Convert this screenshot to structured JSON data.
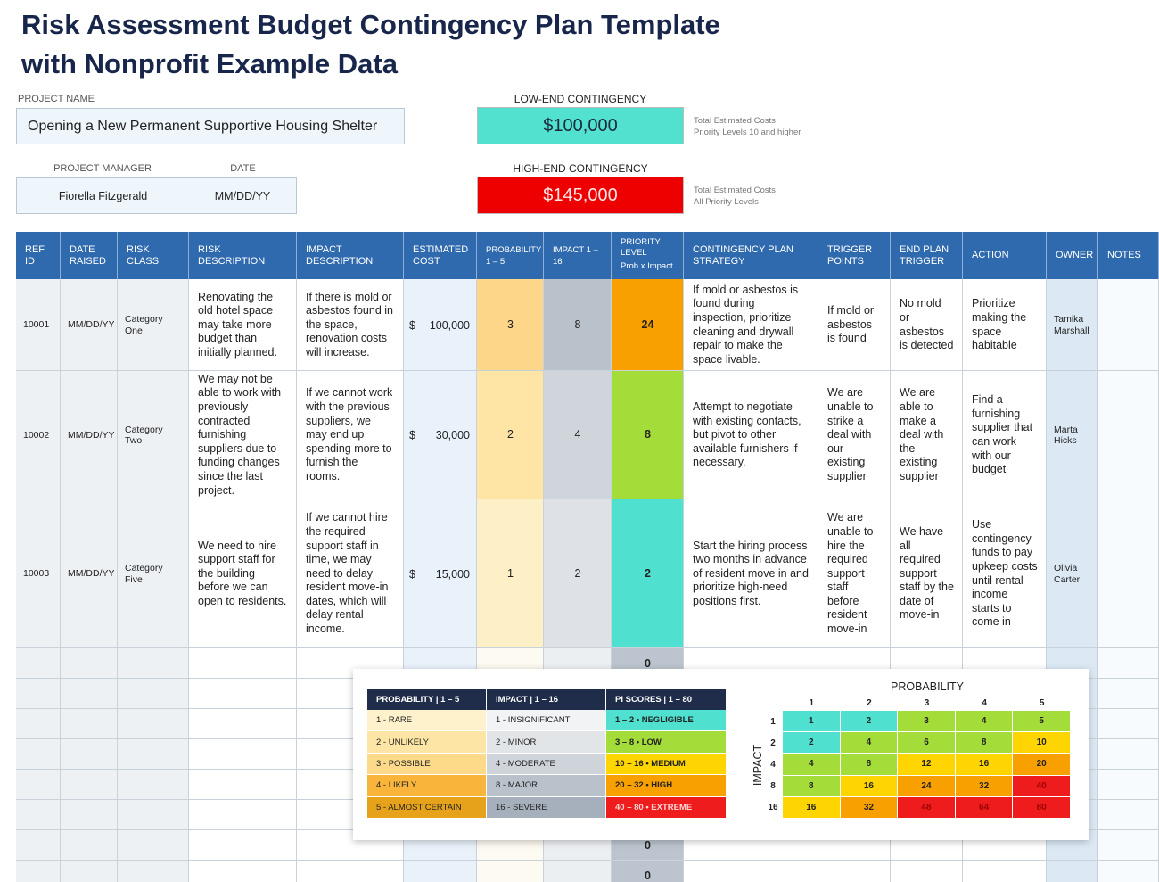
{
  "header": {
    "title": [
      "Risk Assessment Budget Contingency Plan Template",
      "with Nonprofit Example Data"
    ]
  },
  "project": {
    "name_label": "PROJECT NAME",
    "name": "Opening a New Permanent Supportive Housing Shelter",
    "manager_label": "PROJECT MANAGER",
    "manager": "Fiorella Fitzgerald",
    "date_label": "DATE",
    "date": "MM/DD/YY"
  },
  "contingency": {
    "low": {
      "label": "LOW-END CONTINGENCY",
      "amount": "$100,000",
      "notes": [
        "Total Estimated Costs",
        "Priority Levels 10 and higher"
      ],
      "color": "#52e0cf",
      "text_color": "#1a2a3a"
    },
    "high": {
      "label": "HIGH-END CONTINGENCY",
      "amount": "$145,000",
      "notes": [
        "Total Estimated Costs",
        "All Priority Levels"
      ],
      "color": "#ee0000",
      "text_color": "#ffe6e6"
    }
  },
  "table": {
    "columns": [
      "REF ID",
      "DATE RAISED",
      "RISK CLASS",
      "RISK DESCRIPTION",
      "IMPACT DESCRIPTION",
      "ESTIMATED COST",
      "PROBABILITY 1 – 5",
      "IMPACT 1 – 16",
      "PRIORITY LEVEL",
      "CONTINGENCY PLAN STRATEGY",
      "TRIGGER POINTS",
      "END PLAN TRIGGER",
      "ACTION",
      "OWNER",
      "NOTES"
    ],
    "priority_subtitle": "Prob x Impact",
    "rows": [
      {
        "ref": 10001,
        "date_raised": "MM/DD/YY",
        "risk_class": "Category One",
        "risk_description": "Renovating the old hotel space may take more budget than initially planned.",
        "impact_description": "If there is mold or asbestos found in the space, renovation costs will increase.",
        "currency": "$",
        "cost": "100,000",
        "probability": 3,
        "probability_color": "#fdd68a",
        "impact": 8,
        "impact_color": "#b9c1cb",
        "priority": 24,
        "priority_color": "#f7a000",
        "strategy": "If mold or asbestos is found during inspection, prioritize cleaning and drywall repair to make the space livable.",
        "trigger": "If mold or asbestos is found",
        "end_trigger": "No mold or asbestos is detected",
        "action": "Prioritize making the space habitable",
        "owner": "Tamika Marshall"
      },
      {
        "ref": 10002,
        "date_raised": "MM/DD/YY",
        "risk_class": "Category Two",
        "risk_description": "We may not be able to work with previously contracted furnishing suppliers due to funding changes since the last project.",
        "impact_description": "If we cannot work with the previous suppliers, we may end up spending more to furnish the rooms.",
        "currency": "$",
        "cost": "30,000",
        "probability": 2,
        "probability_color": "#fee5a6",
        "impact": 4,
        "impact_color": "#d0d5dc",
        "priority": 8,
        "priority_color": "#a4dc3a",
        "strategy": "Attempt to negotiate with existing contacts, but pivot to other available furnishers if necessary.",
        "trigger": "We are unable to strike a deal with our existing supplier",
        "end_trigger": "We are able to make a deal with the existing supplier",
        "action": "Find a furnishing supplier that can work with our budget",
        "owner": "Marta Hicks"
      },
      {
        "ref": 10003,
        "date_raised": "MM/DD/YY",
        "risk_class": "Category Five",
        "risk_description": "We need to hire support staff for the building before we can open to residents.",
        "impact_description": "If we cannot hire the required support staff in time, we may need to delay resident move-in dates, which will delay rental income.",
        "currency": "$",
        "cost": "15,000",
        "probability": 1,
        "probability_color": "#fef0c6",
        "impact": 2,
        "impact_color": "#dee2e7",
        "priority": 2,
        "priority_color": "#4fe0d0",
        "strategy": "Start the hiring process two months in advance of resident move in and prioritize high-need positions first.",
        "trigger": "We are unable to hire the required support staff before resident move-in",
        "end_trigger": "We have all required support staff by the date of move-in",
        "action": "Use contingency funds to pay upkeep costs until rental income starts to come in",
        "owner": "Olivia Carter"
      }
    ],
    "blank_priorities": [
      0,
      null,
      null,
      null,
      null,
      null,
      0,
      0
    ]
  },
  "legend": {
    "columns": [
      "PROBABILITY | 1 – 5",
      "IMPACT | 1 – 16",
      "PI SCORES | 1 – 80"
    ],
    "rows": [
      {
        "probability": "1 - RARE",
        "impact": "1 - INSIGNIFICANT",
        "score": "1 – 2 • NEGLIGIBLE",
        "colors": [
          "#fef2cc",
          "#f2f3f4",
          "#4fe0d0"
        ]
      },
      {
        "probability": "2 - UNLIKELY",
        "impact": "2 - MINOR",
        "score": "3 – 8 • LOW",
        "colors": [
          "#fde6a5",
          "#e2e5e8",
          "#a4dc3a"
        ]
      },
      {
        "probability": "3 - POSSIBLE",
        "impact": "4 - MODERATE",
        "score": "10 – 16 • MEDIUM",
        "colors": [
          "#fdd98a",
          "#cfd4da",
          "#ffd500"
        ]
      },
      {
        "probability": "4 - LIKELY",
        "impact": "8 - MAJOR",
        "score": "20 – 32 • HIGH",
        "colors": [
          "#f9b53b",
          "#b9c1ca",
          "#f7a000"
        ]
      },
      {
        "probability": "5 - ALMOST CERTAIN",
        "impact": "16 - SEVERE",
        "score": "40 – 80 • EXTREME",
        "colors": [
          "#e6a21a",
          "#a6b0bc",
          "#ee1c1c"
        ]
      }
    ]
  },
  "matrix": {
    "title": "PROBABILITY",
    "axis_label": "IMPACT",
    "columns": [
      1,
      2,
      3,
      4,
      5
    ],
    "rows": [
      {
        "label": 1,
        "values": [
          1,
          2,
          3,
          4,
          5
        ],
        "colors": [
          "#4fe0d0",
          "#4fe0d0",
          "#a4dc3a",
          "#a4dc3a",
          "#a4dc3a"
        ]
      },
      {
        "label": 2,
        "values": [
          2,
          4,
          6,
          8,
          10
        ],
        "colors": [
          "#4fe0d0",
          "#a4dc3a",
          "#a4dc3a",
          "#a4dc3a",
          "#ffd500"
        ]
      },
      {
        "label": 4,
        "values": [
          4,
          8,
          12,
          16,
          20
        ],
        "colors": [
          "#a4dc3a",
          "#a4dc3a",
          "#ffd500",
          "#ffd500",
          "#f7a000"
        ]
      },
      {
        "label": 8,
        "values": [
          8,
          16,
          24,
          32,
          40
        ],
        "colors": [
          "#a4dc3a",
          "#ffd500",
          "#f7a000",
          "#f7a000",
          "#ee1c1c"
        ]
      },
      {
        "label": 16,
        "values": [
          16,
          32,
          48,
          64,
          80
        ],
        "colors": [
          "#ffd500",
          "#f7a000",
          "#ee1c1c",
          "#ee1c1c",
          "#ee1c1c"
        ]
      }
    ]
  }
}
